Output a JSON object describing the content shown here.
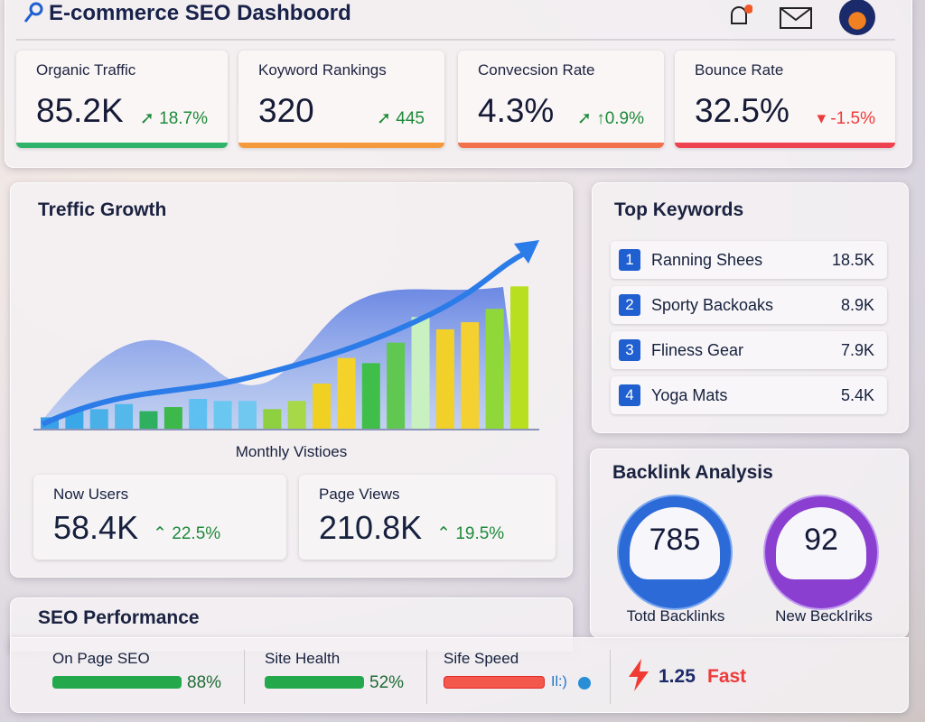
{
  "header": {
    "title": "E-commerce SEO Dashboord",
    "icons": [
      "search-icon",
      "bell-icon",
      "mail-icon",
      "avatar"
    ]
  },
  "kpis": [
    {
      "label": "Organic Traffic",
      "value": "85.2K",
      "change": "18.7%",
      "trend": "up",
      "color": "#2fb36a"
    },
    {
      "label": "Koyword Rankings",
      "value": "320",
      "change": "445",
      "trend": "up",
      "color": "#f59a3c"
    },
    {
      "label": "Convecsion Rate",
      "value": "4.3%",
      "change": "↑0.9%",
      "trend": "up",
      "color": "#f2704a"
    },
    {
      "label": "Bounce Rate",
      "value": "32.5%",
      "change": "-1.5%",
      "trend": "down",
      "color": "#ee4250"
    }
  ],
  "traffic": {
    "title": "Treffic Growth",
    "caption": "Monthly Vistioes"
  },
  "chart_data": {
    "type": "bar",
    "title": "Treffic Growth",
    "xlabel": "Monthly Vistioes",
    "ylabel": "",
    "values": [
      12,
      18,
      20,
      25,
      18,
      22,
      30,
      28,
      28,
      20,
      28,
      45,
      70,
      65,
      85,
      110,
      98,
      105,
      118,
      140
    ],
    "ylim": [
      0,
      150
    ]
  },
  "subs": [
    {
      "label": "Now Users",
      "value": "58.4K",
      "change": "22.5%"
    },
    {
      "label": "Page Views",
      "value": "210.8K",
      "change": "19.5%"
    }
  ],
  "keywords": {
    "title": "Top Keywords",
    "items": [
      {
        "n": "1",
        "name": "Ranning Shees",
        "v": "18.5K"
      },
      {
        "n": "2",
        "name": "Sporty Backoaks",
        "v": "8.9K"
      },
      {
        "n": "3",
        "name": "Fliness Gear",
        "v": "7.9K"
      },
      {
        "n": "4",
        "name": "Yoga Mats",
        "v": "5.4K"
      }
    ]
  },
  "backlinks": {
    "title": "Backlink Analysis",
    "total": "785",
    "total_label": "Totd Backlinks",
    "new": "92",
    "new_label": "New BeckIriks"
  },
  "seo": {
    "title": "SEO Performance",
    "on_page_label": "On Page SEO",
    "on_page": "88%",
    "on_page_pct": 88,
    "health_label": "Site Health",
    "health": "52%",
    "health_pct": 52,
    "speed_label": "Sife Speed",
    "speed_extra": "Il:)",
    "speed_value": "1.25",
    "speed_status": "Fast"
  }
}
